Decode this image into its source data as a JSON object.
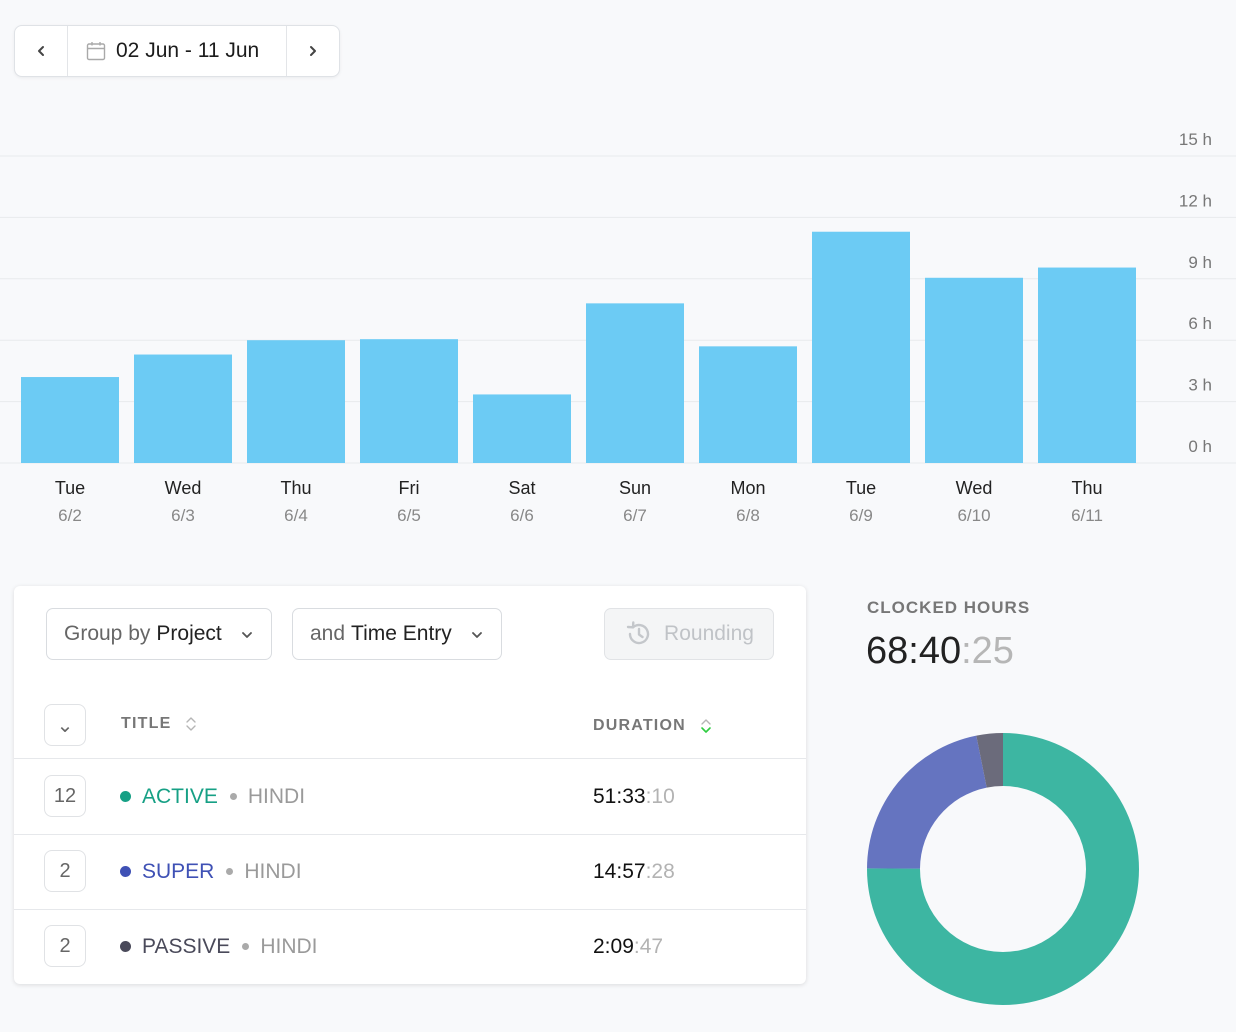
{
  "date_range": {
    "label": "02 Jun - 11 Jun",
    "prev_icon": "chevron-left-icon",
    "next_icon": "chevron-right-icon",
    "calendar_icon": "calendar-icon"
  },
  "chart_data": {
    "type": "bar",
    "categories": [
      "Tue",
      "Wed",
      "Thu",
      "Fri",
      "Sat",
      "Sun",
      "Mon",
      "Tue",
      "Wed",
      "Thu"
    ],
    "dates": [
      "6/2",
      "6/3",
      "6/4",
      "6/5",
      "6/6",
      "6/7",
      "6/8",
      "6/9",
      "6/10",
      "6/11"
    ],
    "values": [
      4.2,
      5.3,
      6.0,
      6.05,
      3.35,
      7.8,
      5.7,
      11.3,
      9.05,
      9.55
    ],
    "unit": "h",
    "ylim": [
      0,
      15
    ],
    "yticks": [
      0,
      3,
      6,
      9,
      12,
      15
    ],
    "ytick_labels": [
      "0 h",
      "3 h",
      "6 h",
      "9 h",
      "12 h",
      "15 h"
    ],
    "grid": true,
    "bar_color": "#6ccbf4"
  },
  "controls": {
    "group_prefix": "Group by ",
    "group_value": "Project",
    "then_prefix": "and ",
    "then_value": "Time Entry",
    "rounding_label": "Rounding",
    "dropdown_icon": "chevron-down-icon",
    "rounding_icon": "history-clock-icon"
  },
  "table": {
    "header_toggle": "⌄",
    "columns": {
      "title": "TITLE",
      "duration": "DURATION"
    },
    "rows": [
      {
        "count": "12",
        "name": "ACTIVE",
        "client": "HINDI",
        "duration_main": "51:33",
        "duration_sec": ":10",
        "color": "#16a085"
      },
      {
        "count": "2",
        "name": "SUPER",
        "client": "HINDI",
        "duration_main": "14:57",
        "duration_sec": ":28",
        "color": "#3f51b5"
      },
      {
        "count": "2",
        "name": "PASSIVE",
        "client": "HINDI",
        "duration_main": "2:09",
        "duration_sec": ":47",
        "color": "#4a4a5a"
      }
    ]
  },
  "summary": {
    "label": "CLOCKED HOURS",
    "total_main": "68:40",
    "total_sec": ":25"
  },
  "donut_data": {
    "type": "pie",
    "segments": [
      {
        "value": 51.55,
        "color": "#3db6a2"
      },
      {
        "value": 14.96,
        "color": "#6574c0"
      },
      {
        "value": 2.16,
        "color": "#6b6b7b"
      }
    ]
  }
}
